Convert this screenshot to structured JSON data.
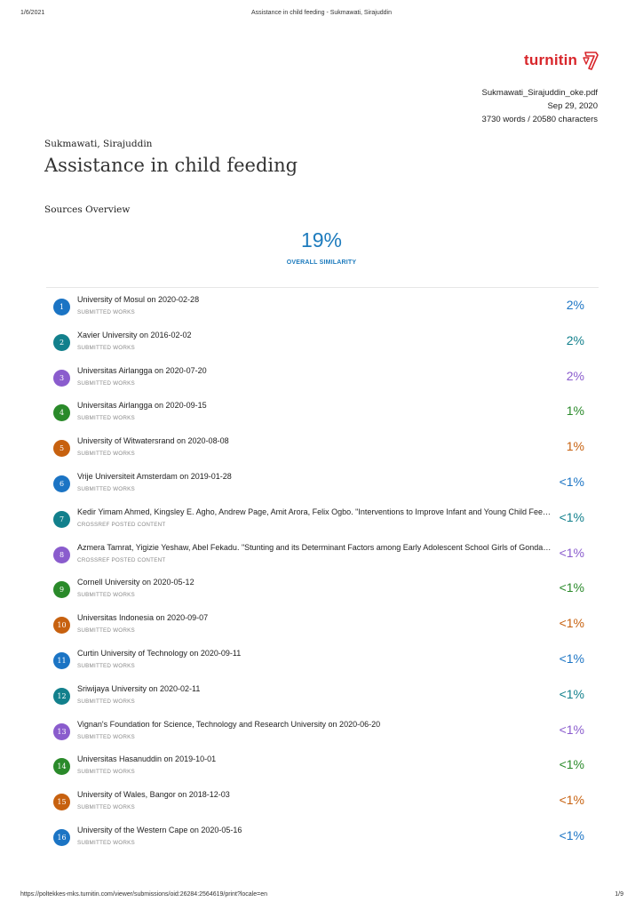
{
  "print_header": {
    "date": "1/6/2021",
    "title": "Assistance in child feeding - Sukmawati, Sirajuddin"
  },
  "logo": {
    "text": "turnitin"
  },
  "meta": {
    "filename": "Sukmawati_Sirajuddin_oke.pdf",
    "date": "Sep 29, 2020",
    "counts": "3730 words / 20580 characters"
  },
  "author": "Sukmawati, Sirajuddin",
  "doc_title": "Assistance in child feeding",
  "section_title": "Sources Overview",
  "similarity": {
    "value": "19%",
    "label": "OVERALL SIMILARITY"
  },
  "colors": {
    "blue": "#1b74c4",
    "teal": "#12808c",
    "purple": "#8a5ccd",
    "green": "#2a8a2a",
    "orange": "#c7610f"
  },
  "sources": [
    {
      "num": "1",
      "name": "University of Mosul on 2020-02-28",
      "type": "SUBMITTED WORKS",
      "pct": "2%",
      "color": "#1b74c4"
    },
    {
      "num": "2",
      "name": "Xavier University on 2016-02-02",
      "type": "SUBMITTED WORKS",
      "pct": "2%",
      "color": "#12808c"
    },
    {
      "num": "3",
      "name": "Universitas Airlangga on 2020-07-20",
      "type": "SUBMITTED WORKS",
      "pct": "2%",
      "color": "#8a5ccd"
    },
    {
      "num": "4",
      "name": "Universitas Airlangga on 2020-09-15",
      "type": "SUBMITTED WORKS",
      "pct": "1%",
      "color": "#2a8a2a"
    },
    {
      "num": "5",
      "name": "University of Witwatersrand on 2020-08-08",
      "type": "SUBMITTED WORKS",
      "pct": "1%",
      "color": "#c7610f"
    },
    {
      "num": "6",
      "name": "Vrije Universiteit Amsterdam on 2019-01-28",
      "type": "SUBMITTED WORKS",
      "pct": "<1%",
      "color": "#1b74c4"
    },
    {
      "num": "7",
      "name": "Kedir Yimam Ahmed, Kingsley E. Agho, Andrew Page, Amit Arora, Felix Ogbo. \"Interventions to Improve Infant and Young Child Feedin...",
      "type": "CROSSREF POSTED CONTENT",
      "pct": "<1%",
      "color": "#12808c"
    },
    {
      "num": "8",
      "name": "Azmera Tamrat, Yigizie Yeshaw, Abel Fekadu. \"Stunting and its Determinant Factors among Early Adolescent School Girls of Gondar t...",
      "type": "CROSSREF POSTED CONTENT",
      "pct": "<1%",
      "color": "#8a5ccd"
    },
    {
      "num": "9",
      "name": "Cornell University on 2020-05-12",
      "type": "SUBMITTED WORKS",
      "pct": "<1%",
      "color": "#2a8a2a"
    },
    {
      "num": "10",
      "name": "Universitas Indonesia on 2020-09-07",
      "type": "SUBMITTED WORKS",
      "pct": "<1%",
      "color": "#c7610f"
    },
    {
      "num": "11",
      "name": "Curtin University of Technology on 2020-09-11",
      "type": "SUBMITTED WORKS",
      "pct": "<1%",
      "color": "#1b74c4"
    },
    {
      "num": "12",
      "name": "Sriwijaya University on 2020-02-11",
      "type": "SUBMITTED WORKS",
      "pct": "<1%",
      "color": "#12808c"
    },
    {
      "num": "13",
      "name": "Vignan's Foundation for Science, Technology and Research University on 2020-06-20",
      "type": "SUBMITTED WORKS",
      "pct": "<1%",
      "color": "#8a5ccd"
    },
    {
      "num": "14",
      "name": "Universitas Hasanuddin on 2019-10-01",
      "type": "SUBMITTED WORKS",
      "pct": "<1%",
      "color": "#2a8a2a"
    },
    {
      "num": "15",
      "name": "University of Wales, Bangor on 2018-12-03",
      "type": "SUBMITTED WORKS",
      "pct": "<1%",
      "color": "#c7610f"
    },
    {
      "num": "16",
      "name": "University of the Western Cape on 2020-05-16",
      "type": "SUBMITTED WORKS",
      "pct": "<1%",
      "color": "#1b74c4"
    }
  ],
  "print_footer": {
    "url": "https://poltekkes-mks.turnitin.com/viewer/submissions/oid:26284:2564619/print?locale=en",
    "page": "1/9"
  }
}
